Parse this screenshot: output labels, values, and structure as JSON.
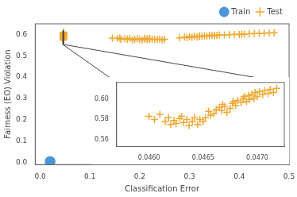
{
  "chart_data": [
    {
      "type": "scatter",
      "xlabel": "Classification Error",
      "ylabel": "Fairness (EO) Violation",
      "xlim": [
        -0.01,
        0.5
      ],
      "ylim": [
        -0.01,
        0.65
      ],
      "xticks": [
        {
          "value": 0.0,
          "label": "0.0"
        },
        0.1,
        0.2,
        0.3,
        0.4,
        0.5
      ],
      "yticks": [
        {
          "value": 0.0,
          "label": "0.0"
        },
        0.1,
        0.2,
        0.3,
        0.4,
        0.5,
        0.6
      ],
      "grid": false,
      "legend": "upper right",
      "series": [
        {
          "name": "Train",
          "color": "#4c96d7",
          "marker": "circle",
          "x": [
            0.02
          ],
          "values": [
            0.005
          ]
        },
        {
          "name": "Test",
          "color": "#f0a830",
          "marker": "plus",
          "x": [
            0.145,
            0.155,
            0.16,
            0.162,
            0.17,
            0.175,
            0.18,
            0.185,
            0.19,
            0.195,
            0.2,
            0.205,
            0.21,
            0.21,
            0.215,
            0.215,
            0.22,
            0.22,
            0.225,
            0.23,
            0.235,
            0.24,
            0.245,
            0.25,
            0.28,
            0.29,
            0.295,
            0.3,
            0.305,
            0.31,
            0.315,
            0.32,
            0.32,
            0.325,
            0.33,
            0.335,
            0.34,
            0.34,
            0.345,
            0.35,
            0.35,
            0.355,
            0.36,
            0.37,
            0.38,
            0.39,
            0.4,
            0.405,
            0.41,
            0.42,
            0.43,
            0.44,
            0.45,
            0.46,
            0.47,
            0.046,
            0.04605,
            0.0461,
            0.04615,
            0.04618,
            0.0462,
            0.04623,
            0.04625,
            0.04628,
            0.0463,
            0.04632,
            0.04635,
            0.04637,
            0.0464,
            0.04642,
            0.04645,
            0.04647,
            0.0465,
            0.04652,
            0.04655,
            0.04657,
            0.0466,
            0.04662,
            0.04665,
            0.04667,
            0.04668,
            0.0467,
            0.04672,
            0.04675,
            0.04677,
            0.04678,
            0.0468,
            0.04682,
            0.04685,
            0.04687,
            0.04688,
            0.0469,
            0.04692,
            0.04693,
            0.04695,
            0.04697,
            0.04698,
            0.047,
            0.04702,
            0.04705,
            0.04707,
            0.0471,
            0.04712,
            0.04715,
            0.04718
          ],
          "values": [
            0.583,
            0.581,
            0.584,
            0.577,
            0.58,
            0.578,
            0.582,
            0.575,
            0.576,
            0.58,
            0.577,
            0.575,
            0.578,
            0.582,
            0.576,
            0.579,
            0.58,
            0.577,
            0.578,
            0.577,
            0.576,
            0.578,
            0.575,
            0.577,
            0.584,
            0.588,
            0.585,
            0.59,
            0.587,
            0.592,
            0.589,
            0.593,
            0.59,
            0.591,
            0.594,
            0.592,
            0.596,
            0.593,
            0.595,
            0.597,
            0.594,
            0.596,
            0.598,
            0.598,
            0.599,
            0.601,
            0.6,
            0.602,
            0.601,
            0.603,
            0.604,
            0.605,
            0.606,
            0.607,
            0.608,
            0.583,
            0.58,
            0.585,
            0.578,
            0.582,
            0.575,
            0.579,
            0.576,
            0.581,
            0.583,
            0.577,
            0.58,
            0.574,
            0.578,
            0.582,
            0.575,
            0.58,
            0.578,
            0.582,
            0.588,
            0.584,
            0.586,
            0.59,
            0.592,
            0.589,
            0.595,
            0.593,
            0.587,
            0.591,
            0.596,
            0.598,
            0.594,
            0.599,
            0.597,
            0.601,
            0.603,
            0.598,
            0.604,
            0.6,
            0.605,
            0.601,
            0.607,
            0.603,
            0.608,
            0.605,
            0.609,
            0.606,
            0.61,
            0.607,
            0.611
          ]
        }
      ]
    },
    {
      "type": "scatter",
      "xlim": [
        0.0457,
        0.04725
      ],
      "ylim": [
        0.553,
        0.617
      ],
      "xticks": [
        {
          "value": 0.046,
          "label": "0.0460"
        },
        {
          "value": 0.0465,
          "label": "0.0465"
        },
        {
          "value": 0.047,
          "label": "0.0470"
        }
      ],
      "yticks": [
        0.56,
        0.58,
        {
          "value": 0.6,
          "label": "0.60"
        }
      ],
      "grid": false,
      "series": [
        {
          "color": "#f0a830",
          "marker": "plus",
          "x": [
            0.046,
            0.04605,
            0.0461,
            0.04615,
            0.04618,
            0.0462,
            0.04623,
            0.04625,
            0.04628,
            0.0463,
            0.04632,
            0.04635,
            0.04637,
            0.0464,
            0.04642,
            0.04645,
            0.04647,
            0.0465,
            0.04652,
            0.04655,
            0.04657,
            0.0466,
            0.04662,
            0.04665,
            0.04667,
            0.04668,
            0.0467,
            0.04672,
            0.04675,
            0.04677,
            0.04678,
            0.0468,
            0.04682,
            0.04685,
            0.04687,
            0.04688,
            0.0469,
            0.04692,
            0.04693,
            0.04695,
            0.04697,
            0.04698,
            0.047,
            0.04702,
            0.04705,
            0.04707,
            0.0471,
            0.04712,
            0.04715,
            0.04718
          ],
          "values": [
            0.583,
            0.58,
            0.585,
            0.578,
            0.582,
            0.575,
            0.579,
            0.576,
            0.581,
            0.583,
            0.577,
            0.58,
            0.574,
            0.578,
            0.582,
            0.575,
            0.58,
            0.578,
            0.582,
            0.588,
            0.584,
            0.586,
            0.59,
            0.592,
            0.589,
            0.595,
            0.593,
            0.587,
            0.591,
            0.596,
            0.598,
            0.594,
            0.599,
            0.597,
            0.601,
            0.603,
            0.598,
            0.604,
            0.6,
            0.605,
            0.601,
            0.607,
            0.603,
            0.608,
            0.605,
            0.609,
            0.606,
            0.61,
            0.607,
            0.611
          ]
        }
      ]
    }
  ]
}
